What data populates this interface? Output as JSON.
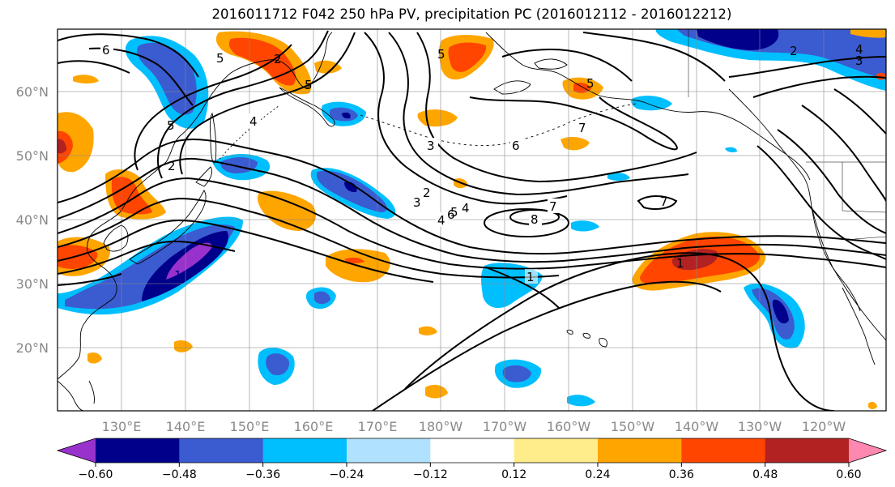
{
  "title": "2016011712 F042 250 hPa PV, precipitation PC (2016012112 - 2016012212)",
  "lat_labels": [
    "60°N",
    "50°N",
    "40°N",
    "30°N",
    "20°N"
  ],
  "lon_labels": [
    "130°E",
    "140°E",
    "150°E",
    "160°E",
    "170°E",
    "180°W",
    "170°W",
    "160°W",
    "150°W",
    "140°W",
    "130°W",
    "120°W"
  ],
  "colorbar": {
    "colors": [
      "#9932cc",
      "#00008b",
      "#3b5bd0",
      "#00bfff",
      "#b0e2ff",
      "#ffffff",
      "#ffec8b",
      "#ffa500",
      "#ff4500",
      "#b22222",
      "#ff88b0"
    ],
    "tick_labels": [
      "−0.60",
      "−0.48",
      "−0.36",
      "−0.24",
      "−0.12",
      "0.12",
      "0.24",
      "0.36",
      "0.48",
      "0.60"
    ]
  },
  "contour_labels": [
    "6",
    "5",
    "2",
    "4",
    "5",
    "2",
    "5",
    "5",
    "3",
    "2",
    "5",
    "4",
    "7",
    "6",
    "3",
    "4",
    "5",
    "6",
    "7",
    "8",
    "7",
    "1",
    "1",
    "2",
    "4",
    "3",
    "1"
  ],
  "legend_note": ""
}
